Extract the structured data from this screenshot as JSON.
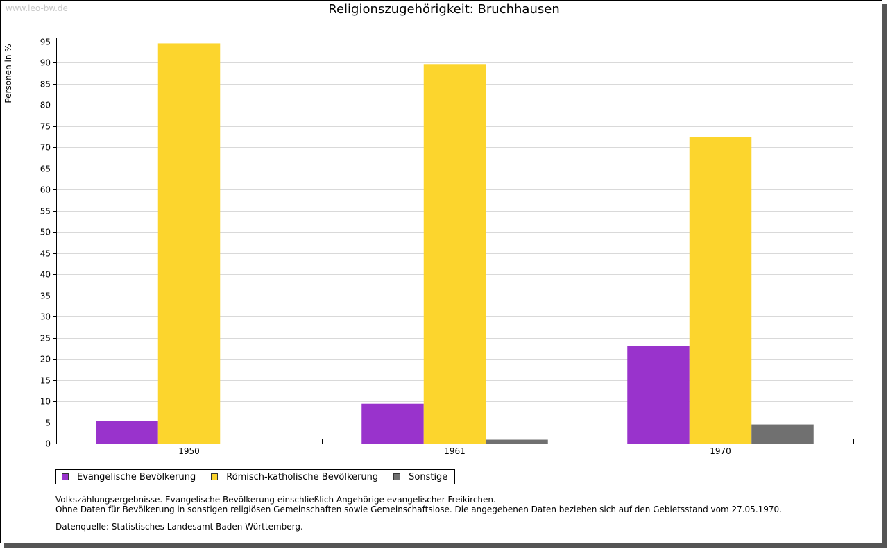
{
  "watermark": "www.leo-bw.de",
  "chart_data": {
    "type": "bar",
    "title": "Religionszugehörigkeit: Bruchhausen",
    "xlabel": "",
    "ylabel": "Personen in %",
    "ylim": [
      0,
      95
    ],
    "yticks": [
      0,
      5,
      10,
      15,
      20,
      25,
      30,
      35,
      40,
      45,
      50,
      55,
      60,
      65,
      70,
      75,
      80,
      85,
      90,
      95
    ],
    "grid": true,
    "legend_position": "bottom-left",
    "categories": [
      "1950",
      "1961",
      "1970"
    ],
    "series": [
      {
        "name": "Evangelische Bevölkerung",
        "color": "#9933cc",
        "values": [
          5.4,
          9.4,
          23.0
        ]
      },
      {
        "name": "Römisch-katholische Bevölkerung",
        "color": "#fcd52d",
        "values": [
          94.6,
          89.7,
          72.5
        ]
      },
      {
        "name": "Sonstige",
        "color": "#707070",
        "values": [
          null,
          0.9,
          4.5
        ]
      }
    ]
  },
  "notes": {
    "line1": "Volkszählungsergebnisse. Evangelische Bevölkerung einschließlich Angehörige evangelischer Freikirchen.",
    "line2": "Ohne Daten für Bevölkerung in sonstigen religiösen Gemeinschaften sowie Gemeinschaftslose. Die angegebenen Daten beziehen sich auf den Gebietsstand vom 27.05.1970.",
    "source": "Datenquelle: Statistisches Landesamt Baden-Württemberg."
  }
}
